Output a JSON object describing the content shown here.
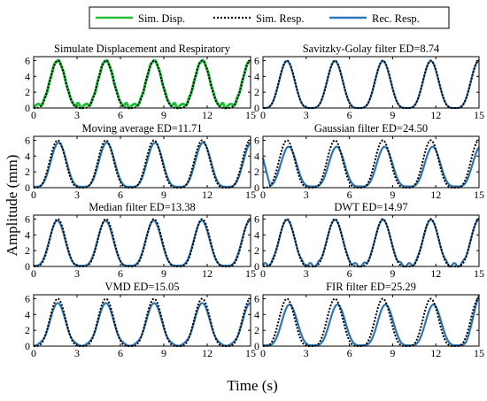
{
  "figure": {
    "xlabel": "Time (s)",
    "ylabel": "Amplitude (mm)"
  },
  "legend": {
    "position": "top-center",
    "entries": [
      {
        "label": "Sim. Disp.",
        "color": "#1fbf3a",
        "style": "solid"
      },
      {
        "label": "Sim. Resp.",
        "color": "#000000",
        "style": "dotted"
      },
      {
        "label": "Rec. Resp.",
        "color": "#2a76b8",
        "style": "solid"
      }
    ]
  },
  "colors": {
    "sim_disp": "#1fbf3a",
    "sim_resp": "#000000",
    "rec_resp": "#2a76b8"
  },
  "chart_data": [
    {
      "type": "line",
      "title": "Simulate Displacement and Respiratory",
      "method": "simulate",
      "xlim": [
        0,
        15
      ],
      "ylim": [
        0,
        6.5
      ],
      "xticks": [
        0,
        3,
        6,
        9,
        12,
        15
      ],
      "yticks": [
        0,
        2,
        4,
        6
      ],
      "period_s": 3.33,
      "peak_mm": 6,
      "series": [
        {
          "name": "Sim. Disp."
        },
        {
          "name": "Sim. Resp."
        }
      ]
    },
    {
      "type": "line",
      "title": "Savitzky-Golay filter   ED=8.74",
      "method": "sg",
      "ed": 8.74,
      "xlim": [
        0,
        15
      ],
      "ylim": [
        0,
        6.5
      ],
      "xticks": [
        0,
        3,
        6,
        9,
        12,
        15
      ],
      "yticks": [
        0,
        2,
        4,
        6
      ],
      "period_s": 3.33,
      "peak_mm": 6,
      "series": [
        {
          "name": "Sim. Resp."
        },
        {
          "name": "Rec. Resp."
        }
      ]
    },
    {
      "type": "line",
      "title": "Moving average   ED=11.71",
      "method": "ma",
      "ed": 11.71,
      "xlim": [
        0,
        15
      ],
      "ylim": [
        0,
        6.5
      ],
      "xticks": [
        0,
        3,
        6,
        9,
        12,
        15
      ],
      "yticks": [
        0,
        2,
        4,
        6
      ],
      "period_s": 3.33,
      "peak_mm": 6,
      "series": [
        {
          "name": "Sim. Resp."
        },
        {
          "name": "Rec. Resp."
        }
      ]
    },
    {
      "type": "line",
      "title": "Gaussian filter   ED=24.50",
      "method": "gauss",
      "ed": 24.5,
      "xlim": [
        0,
        15
      ],
      "ylim": [
        0,
        6.5
      ],
      "xticks": [
        0,
        3,
        6,
        9,
        12,
        15
      ],
      "yticks": [
        0,
        2,
        4,
        6
      ],
      "period_s": 3.33,
      "peak_mm": 6,
      "series": [
        {
          "name": "Sim. Resp."
        },
        {
          "name": "Rec. Resp."
        }
      ]
    },
    {
      "type": "line",
      "title": "Median filter   ED=13.38",
      "method": "median",
      "ed": 13.38,
      "xlim": [
        0,
        15
      ],
      "ylim": [
        0,
        6.5
      ],
      "xticks": [
        0,
        3,
        6,
        9,
        12,
        15
      ],
      "yticks": [
        0,
        2,
        4,
        6
      ],
      "period_s": 3.33,
      "peak_mm": 6,
      "series": [
        {
          "name": "Sim. Resp."
        },
        {
          "name": "Rec. Resp."
        }
      ]
    },
    {
      "type": "line",
      "title": "DWT   ED=14.97",
      "method": "dwt",
      "ed": 14.97,
      "xlim": [
        0,
        15
      ],
      "ylim": [
        0,
        6.5
      ],
      "xticks": [
        0,
        3,
        6,
        9,
        12,
        15
      ],
      "yticks": [
        0,
        2,
        4,
        6
      ],
      "period_s": 3.33,
      "peak_mm": 6,
      "series": [
        {
          "name": "Sim. Resp."
        },
        {
          "name": "Rec. Resp."
        }
      ]
    },
    {
      "type": "line",
      "title": "VMD   ED=15.05",
      "method": "vmd",
      "ed": 15.05,
      "xlim": [
        0,
        15
      ],
      "ylim": [
        0,
        6.5
      ],
      "xticks": [
        0,
        3,
        6,
        9,
        12,
        15
      ],
      "yticks": [
        0,
        2,
        4,
        6
      ],
      "period_s": 3.33,
      "peak_mm": 6,
      "series": [
        {
          "name": "Sim. Resp."
        },
        {
          "name": "Rec. Resp."
        }
      ]
    },
    {
      "type": "line",
      "title": "FIR filter   ED=25.29",
      "method": "fir",
      "ed": 25.29,
      "xlim": [
        0,
        15
      ],
      "ylim": [
        0,
        6.5
      ],
      "xticks": [
        0,
        3,
        6,
        9,
        12,
        15
      ],
      "yticks": [
        0,
        2,
        4,
        6
      ],
      "period_s": 3.33,
      "peak_mm": 6,
      "series": [
        {
          "name": "Sim. Resp."
        },
        {
          "name": "Rec. Resp."
        }
      ]
    }
  ]
}
